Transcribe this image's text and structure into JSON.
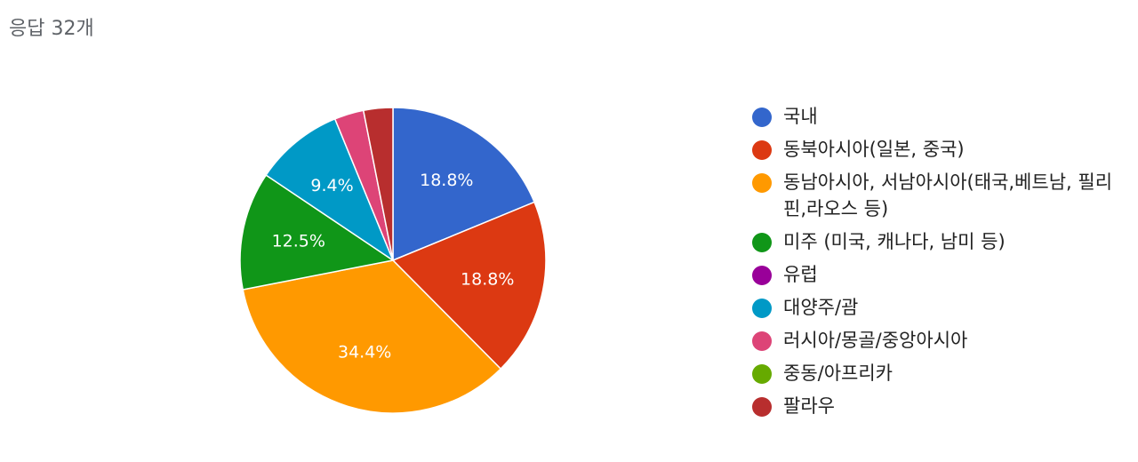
{
  "header": {
    "response_count": "응답 32개"
  },
  "chart_data": {
    "type": "pie",
    "title": "",
    "start_angle_deg": 90,
    "direction": "clockwise",
    "slices": [
      {
        "name": "국내",
        "value": 18.8,
        "label": "18.8%",
        "color": "#3366cc"
      },
      {
        "name": "동북아시아(일본, 중국)",
        "value": 18.8,
        "label": "18.8%",
        "color": "#dc3912"
      },
      {
        "name": "동남아시아, 서남아시아(태국,베트남, 필리핀,라오스 등)",
        "value": 34.4,
        "label": "34.4%",
        "color": "#ff9900"
      },
      {
        "name": "미주 (미국, 캐나다, 남미 등)",
        "value": 12.5,
        "label": "12.5%",
        "color": "#109618"
      },
      {
        "name": "유럽",
        "value": 0,
        "label": "",
        "color": "#990099"
      },
      {
        "name": "대양주/괌",
        "value": 9.4,
        "label": "9.4%",
        "color": "#0099c6"
      },
      {
        "name": "러시아/몽골/중앙아시아",
        "value": 3.1,
        "label": "",
        "color": "#dd4477"
      },
      {
        "name": "중동/아프리카",
        "value": 0,
        "label": "",
        "color": "#66aa00"
      },
      {
        "name": "팔라우",
        "value": 3.1,
        "label": "",
        "color": "#b82e2e"
      }
    ],
    "legend_position": "right"
  }
}
